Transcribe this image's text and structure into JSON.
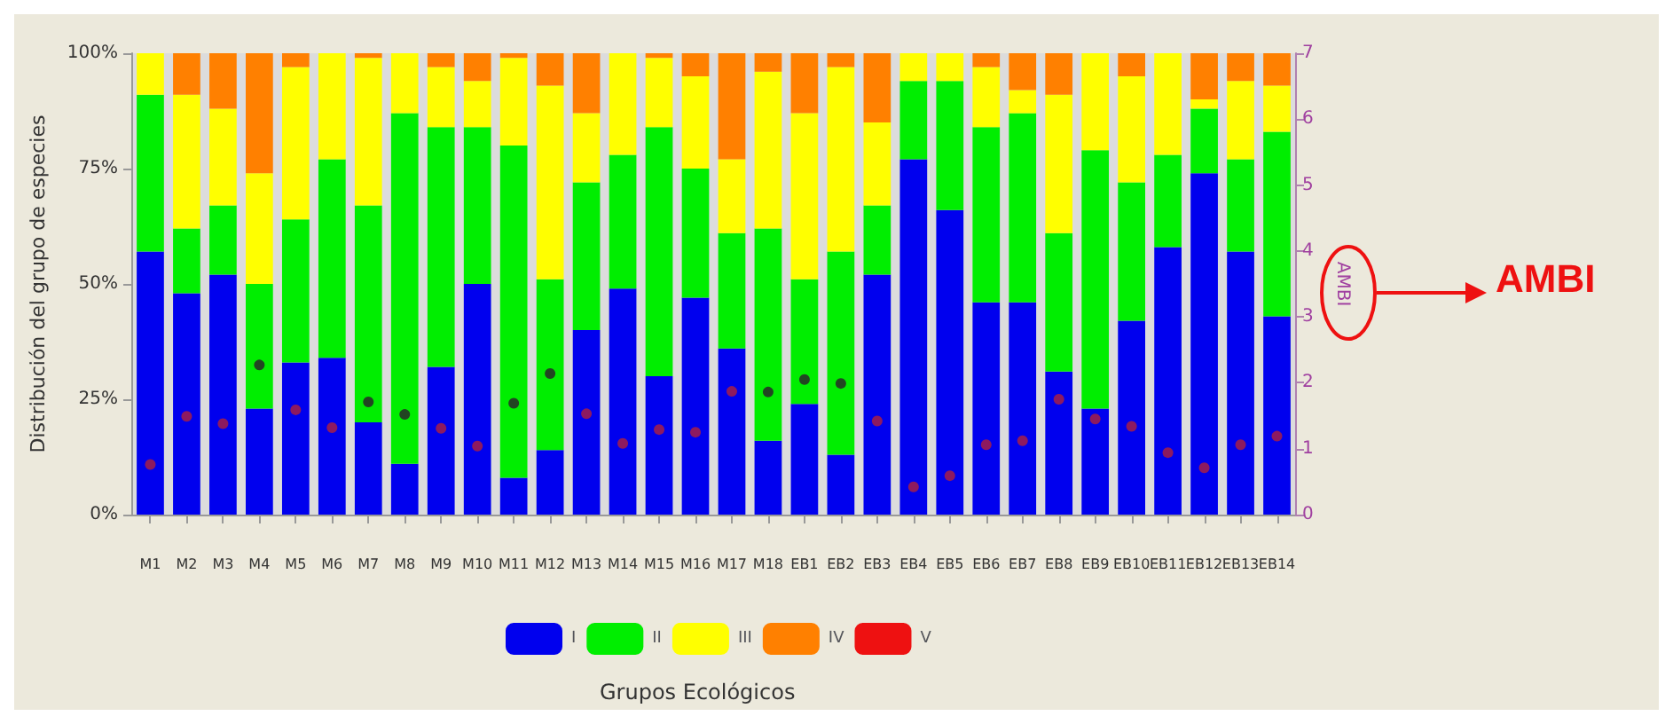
{
  "chart_data": {
    "type": "bar",
    "stacked": true,
    "ylabel": "Distribución del grupo de especies",
    "y2label": "AMBI",
    "legend_title": "Grupos Ecológicos",
    "legend": "bottom",
    "grid": false,
    "categories": [
      "M1",
      "M2",
      "M3",
      "M4",
      "M5",
      "M6",
      "M7",
      "M8",
      "M9",
      "M10",
      "M11",
      "M12",
      "M13",
      "M14",
      "M15",
      "M16",
      "M17",
      "M18",
      "EB1",
      "EB2",
      "EB3",
      "EB4",
      "EB5",
      "EB6",
      "EB7",
      "EB8",
      "EB9",
      "EB10",
      "EB11",
      "EB12",
      "EB13",
      "EB14"
    ],
    "ylim": [
      0,
      100
    ],
    "yticks": [
      {
        "value": 0,
        "label": "0%"
      },
      {
        "value": 25,
        "label": "25%"
      },
      {
        "value": 50,
        "label": "50%"
      },
      {
        "value": 75,
        "label": "75%"
      },
      {
        "value": 100,
        "label": "100%"
      }
    ],
    "y2lim": [
      0,
      7
    ],
    "y2ticks": [
      0,
      1,
      2,
      3,
      4,
      5,
      6,
      7
    ],
    "series": [
      {
        "name": "I",
        "color": "#0000ee",
        "values": [
          57,
          48,
          52,
          23,
          33,
          34,
          20,
          11,
          32,
          50,
          8,
          14,
          40,
          49,
          30,
          47,
          36,
          16,
          24,
          13,
          52,
          77,
          66,
          46,
          46,
          31,
          23,
          42,
          58,
          74,
          57,
          43
        ]
      },
      {
        "name": "II",
        "color": "#00ee00",
        "values": [
          34,
          14,
          15,
          27,
          31,
          43,
          47,
          76,
          52,
          34,
          72,
          37,
          32,
          29,
          54,
          28,
          25,
          46,
          27,
          44,
          15,
          17,
          28,
          38,
          41,
          30,
          56,
          30,
          20,
          14,
          20,
          40
        ]
      },
      {
        "name": "III",
        "color": "#ffff00",
        "values": [
          9,
          29,
          21,
          24,
          33,
          23,
          32,
          13,
          13,
          10,
          19,
          42,
          15,
          22,
          15,
          20,
          16,
          34,
          36,
          40,
          18,
          6,
          6,
          13,
          5,
          30,
          21,
          23,
          22,
          2,
          17,
          10
        ]
      },
      {
        "name": "IV",
        "color": "#ff8000",
        "values": [
          0,
          9,
          12,
          26,
          3,
          0,
          1,
          0,
          3,
          6,
          1,
          7,
          13,
          0,
          1,
          5,
          23,
          4,
          13,
          3,
          15,
          0,
          0,
          3,
          8,
          9,
          0,
          5,
          0,
          10,
          6,
          7
        ]
      },
      {
        "name": "V",
        "color": "#ee1111",
        "values": [
          0,
          0,
          0,
          0,
          0,
          0,
          0,
          0,
          0,
          0,
          0,
          0,
          0,
          0,
          0,
          0,
          0,
          0,
          0,
          0,
          0,
          0,
          0,
          0,
          0,
          0,
          0,
          0,
          0,
          0,
          0,
          0
        ]
      },
      {
        "type": "scatter",
        "axis": "y2",
        "marker": "circle",
        "values": [
          0.76,
          1.49,
          1.38,
          2.27,
          1.59,
          1.32,
          1.71,
          1.52,
          1.31,
          1.04,
          1.69,
          2.14,
          1.53,
          1.08,
          1.29,
          1.25,
          1.87,
          1.86,
          2.05,
          1.99,
          1.42,
          0.42,
          0.59,
          1.06,
          1.12,
          1.75,
          1.45,
          1.34,
          0.94,
          0.71,
          1.06,
          1.19
        ],
        "colors": [
          "#b0203c",
          "#b0203c",
          "#b0203c",
          "#2a1a2a",
          "#b0203c",
          "#b0203c",
          "#2a1a2a",
          "#2a1a2a",
          "#b0203c",
          "#b0203c",
          "#2a1a2a",
          "#2a1a2a",
          "#b0203c",
          "#b0203c",
          "#b0203c",
          "#b0203c",
          "#b0203c",
          "#2a1a2a",
          "#2a1a2a",
          "#2a1a2a",
          "#b0203c",
          "#b0203c",
          "#b0203c",
          "#b0203c",
          "#b0203c",
          "#b0203c",
          "#b0203c",
          "#b0203c",
          "#b0203c",
          "#b0203c",
          "#b0203c",
          "#b0203c"
        ]
      }
    ],
    "annotations": [
      "AMBI"
    ]
  }
}
